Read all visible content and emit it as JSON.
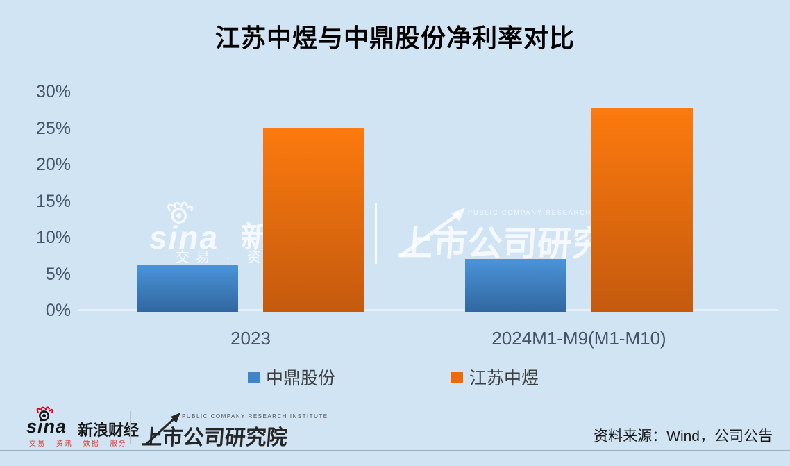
{
  "title": "江苏中煜与中鼎股份净利率对比",
  "chart_data": {
    "type": "bar",
    "categories": [
      "2023",
      "2024M1-M9(M1-M10)"
    ],
    "series": [
      {
        "name": "中鼎股份",
        "values": [
          6.5,
          7.2
        ],
        "color_top": "#4b94da",
        "color_bottom": "#31679f",
        "legend_color": "#3d85c8"
      },
      {
        "name": "江苏中煜",
        "values": [
          25.2,
          27.9
        ],
        "color_top": "#fc7a0e",
        "color_bottom": "#c45a0e",
        "legend_color": "#ea6a0d"
      }
    ],
    "y_ticks": [
      "30%",
      "25%",
      "20%",
      "15%",
      "10%",
      "5%",
      "0%"
    ],
    "ylim": [
      0,
      30
    ],
    "unit": "%",
    "grid": false,
    "legend_position": "bottom",
    "background_color": "#d0e4f3",
    "tick_color": "#44546a"
  },
  "watermarks": {
    "sina": {
      "wordmark": "sina",
      "cn": "新浪",
      "subtext": "交易 · 资讯"
    },
    "pcri": {
      "en": "PUBLIC COMPANY RESEARCH INSTITUTE",
      "cn": "上市公司研究院"
    }
  },
  "footer": {
    "sina_wordmark": "sina",
    "sina_cn": "新浪财经",
    "sina_subtext": "交易 · 资讯 · 数据 · 服务",
    "pcri_en": "PUBLIC COMPANY RESEARCH INSTITUTE",
    "pcri_cn": "上市公司研究院",
    "source": "资料来源：Wind，公司公告"
  }
}
